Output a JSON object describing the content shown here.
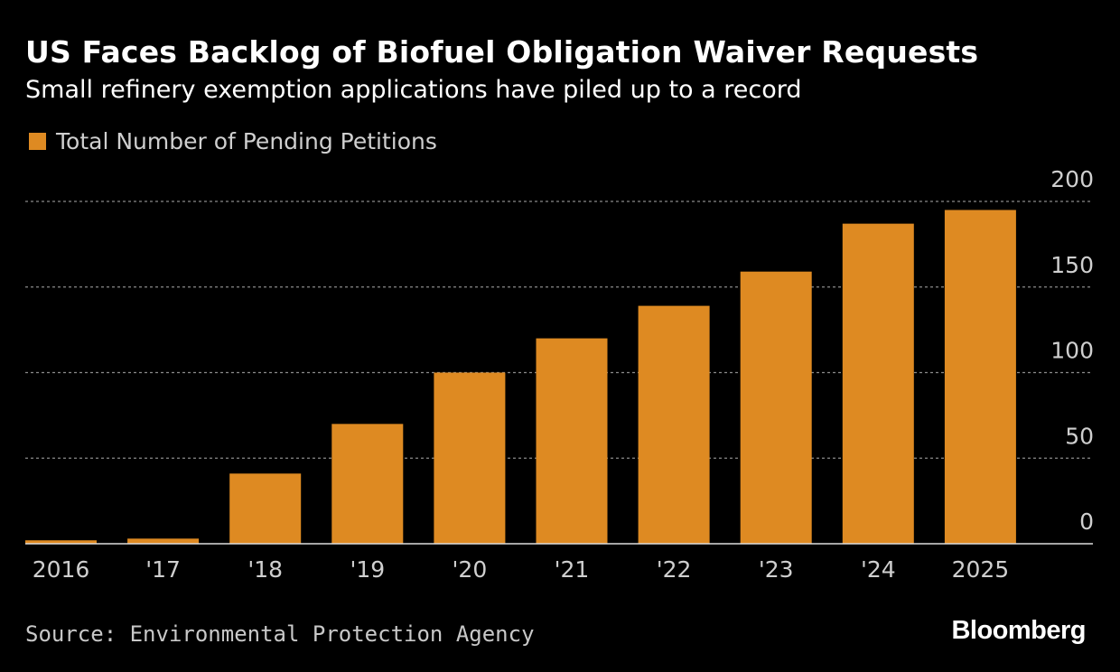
{
  "header": {
    "title": "US Faces Backlog of Biofuel Obligation Waiver Requests",
    "subtitle": "Small refinery exemption applications have piled up to a record"
  },
  "legend": {
    "label": "Total Number of Pending Petitions"
  },
  "footer": {
    "source": "Source: Environmental Protection Agency",
    "brand": "Bloomberg"
  },
  "colors": {
    "bar": "#DE8A22",
    "background": "#000000",
    "grid": "#8a8a8a",
    "axis": "#dddddd",
    "text": "#ffffff",
    "muted_text": "#cfcfcf"
  },
  "chart_data": {
    "type": "bar",
    "title": "US Faces Backlog of Biofuel Obligation Waiver Requests",
    "subtitle": "Small refinery exemption applications have piled up to a record",
    "categories": [
      "2016",
      "'17",
      "'18",
      "'19",
      "'20",
      "'21",
      "'22",
      "'23",
      "'24",
      "'25"
    ],
    "category_labels": [
      "2016",
      "'17",
      "'18",
      "'19",
      "'20",
      "'21",
      "'22",
      "'23",
      "'24",
      "2025"
    ],
    "series": [
      {
        "name": "Total Number of Pending Petitions",
        "values": [
          2,
          3,
          41,
          70,
          100,
          120,
          139,
          159,
          187,
          195
        ]
      }
    ],
    "xlabel": "",
    "ylabel": "",
    "ylim": [
      0,
      200
    ],
    "yticks": [
      0,
      50,
      100,
      150,
      200
    ],
    "ytick_labels": [
      "0",
      "50",
      "100",
      "150",
      "200"
    ],
    "grid": true,
    "y_axis_side": "right",
    "legend_position": "top-left"
  }
}
